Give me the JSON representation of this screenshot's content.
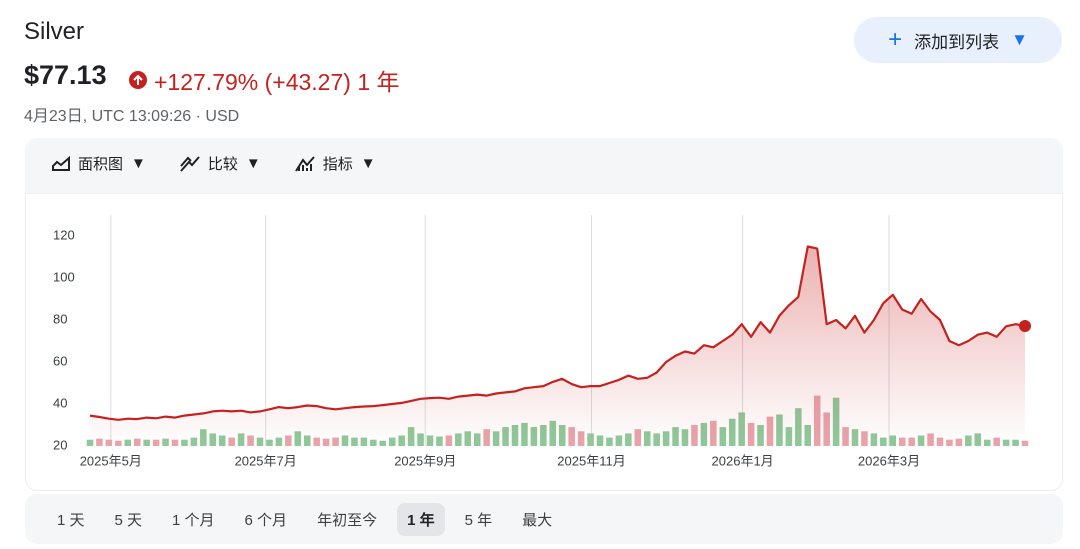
{
  "header": {
    "title": "Silver",
    "price": "$77.13",
    "change": "+127.79% (+43.27) 1 年",
    "timestamp": "4月23日, UTC 13:09:26",
    "currency": "USD"
  },
  "add_button": "添加到列表",
  "toolbar": [
    "面积图",
    "比较",
    "指标"
  ],
  "ranges": [
    "1 天",
    "5 天",
    "1 个月",
    "6 个月",
    "年初至今",
    "1 年",
    "5 年",
    "最大"
  ],
  "selected_range": 5,
  "chart_data": {
    "type": "area",
    "color": "#c5221f",
    "up_color": "#8fc89a",
    "down_color": "#e9a3ab",
    "values": [
      34.5,
      33.8,
      33,
      32.5,
      33,
      32.8,
      33.5,
      33.2,
      34,
      33.5,
      34.5,
      35,
      35.5,
      36.5,
      36.8,
      36.5,
      36.8,
      36,
      36.5,
      37.5,
      38.5,
      38,
      38.5,
      39.3,
      39,
      38,
      37.5,
      38,
      38.5,
      38.8,
      39,
      39.5,
      40,
      40.5,
      41.5,
      42.5,
      42.8,
      43,
      42.5,
      43.5,
      44,
      44.5,
      44,
      45,
      45.5,
      46,
      47.5,
      48,
      48.5,
      50.5,
      52,
      49.5,
      48,
      48.5,
      48.5,
      50,
      51.5,
      53.5,
      52,
      52.5,
      55,
      60,
      63,
      65,
      64,
      68,
      67,
      70,
      73,
      78,
      72,
      79,
      74,
      82,
      87,
      91,
      115,
      114,
      78,
      80,
      76,
      82,
      74,
      80,
      88,
      92,
      85,
      83,
      90,
      84,
      80,
      70,
      68,
      70,
      73,
      74,
      72,
      77,
      78,
      77.13
    ],
    "volume": [
      23,
      23.5,
      23,
      22.5,
      23,
      23.5,
      23,
      23,
      23.5,
      23,
      23,
      24,
      28,
      26,
      25,
      24,
      26,
      25,
      24,
      23,
      24,
      25,
      27,
      25,
      24,
      23.5,
      24,
      25,
      24,
      24,
      23,
      22.5,
      24,
      25,
      29,
      26,
      25,
      24.5,
      25,
      26,
      27,
      26,
      28,
      27,
      29,
      30,
      31,
      29,
      30,
      32,
      30,
      29,
      27,
      26,
      25,
      24,
      25,
      26,
      28,
      27,
      26,
      27,
      29,
      28,
      30,
      31,
      32,
      29,
      33,
      36,
      31,
      30,
      34,
      35,
      29,
      38,
      30,
      44,
      36,
      43,
      29,
      28,
      27,
      26,
      24,
      25,
      24,
      24,
      25,
      26,
      24,
      23,
      23.5,
      25,
      26,
      23,
      24,
      23,
      23,
      22.5
    ],
    "xlim": [
      0,
      99
    ],
    "xticks": [
      {
        "value": 2.2,
        "label": "2025年5月"
      },
      {
        "value": 18.6,
        "label": "2025年7月"
      },
      {
        "value": 35.5,
        "label": "2025年9月"
      },
      {
        "value": 53.1,
        "label": "2025年11月"
      },
      {
        "value": 69.1,
        "label": "2026年1月"
      },
      {
        "value": 84.6,
        "label": "2026年3月"
      }
    ],
    "ylim": [
      20,
      130
    ],
    "yticks": [
      20,
      40,
      60,
      80,
      100,
      120
    ],
    "grid": true
  }
}
